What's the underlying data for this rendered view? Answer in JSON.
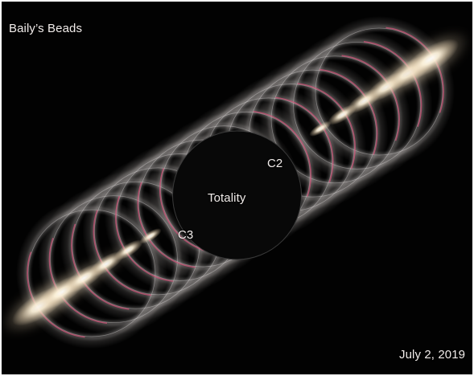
{
  "image": {
    "title": "Baily’s Beads",
    "date": "July 2, 2019",
    "labels": {
      "totality": "Totality",
      "c2": "C2",
      "c3": "C3"
    },
    "colors": {
      "background": "#020202",
      "limb_ring": "#d8d2d0",
      "chromosphere": "#d6547a",
      "bead": "#fff4dc",
      "text": "#f1ecea"
    }
  }
}
